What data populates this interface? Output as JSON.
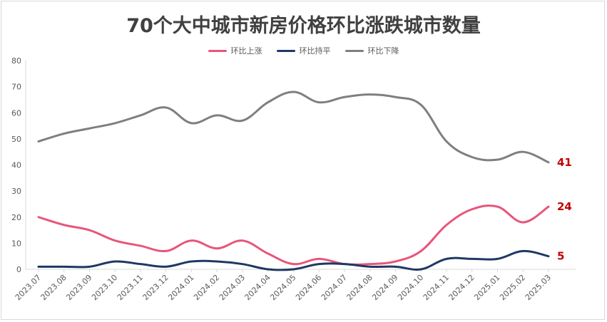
{
  "chart_data": {
    "type": "line",
    "title": "70个大中城市新房价格环比涨跌城市数量",
    "xlabel": "",
    "ylabel": "",
    "ylim": [
      0,
      80
    ],
    "yticks": [
      0,
      10,
      20,
      30,
      40,
      50,
      60,
      70,
      80
    ],
    "grid": false,
    "legend_position": "top",
    "categories": [
      "2023.07",
      "2023.08",
      "2023.09",
      "2023.10",
      "2023.11",
      "2023.12",
      "2024.01",
      "2024.02",
      "2024.03",
      "2024.04",
      "2024.05",
      "2024.06",
      "2024.07",
      "2024.08",
      "2024.09",
      "2024.10",
      "2024.11",
      "2024.12",
      "2025.01",
      "2025.02",
      "2025.03"
    ],
    "series": [
      {
        "name": "环比上涨",
        "color": "#e8557a",
        "values": [
          20,
          17,
          15,
          11,
          9,
          7,
          11,
          8,
          11,
          6,
          2,
          4,
          2,
          2,
          3,
          7,
          17,
          23,
          24,
          18,
          24
        ],
        "end_label": "24",
        "end_label_color": "#c00000"
      },
      {
        "name": "环比持平",
        "color": "#1f3864",
        "values": [
          1,
          1,
          1,
          3,
          2,
          1,
          3,
          3,
          2,
          0,
          0,
          2,
          2,
          1,
          1,
          0,
          4,
          4,
          4,
          7,
          5
        ],
        "end_label": "5",
        "end_label_color": "#c00000"
      },
      {
        "name": "环比下降",
        "color": "#7f7f7f",
        "values": [
          49,
          52,
          54,
          56,
          59,
          62,
          56,
          59,
          57,
          64,
          68,
          64,
          66,
          67,
          66,
          63,
          49,
          43,
          42,
          45,
          41
        ],
        "end_label": "41",
        "end_label_color": "#c00000"
      }
    ]
  }
}
